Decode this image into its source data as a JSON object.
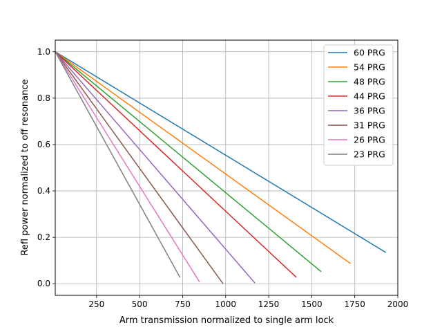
{
  "chart_data": {
    "type": "line",
    "title": "",
    "xlabel": "Arm transmission normalized to single arm lock",
    "ylabel": "Refl power normalized to off resonance",
    "xlim": [
      10,
      2000
    ],
    "ylim": [
      -0.05,
      1.05
    ],
    "xticks": [
      250,
      500,
      750,
      1000,
      1250,
      1500,
      1750,
      2000
    ],
    "yticks": [
      0.0,
      0.2,
      0.4,
      0.6,
      0.8,
      1.0
    ],
    "xtick_labels": [
      "250",
      "500",
      "750",
      "1000",
      "1250",
      "1500",
      "1750",
      "2000"
    ],
    "ytick_labels": [
      "0.0",
      "0.2",
      "0.4",
      "0.6",
      "0.8",
      "1.0"
    ],
    "grid": true,
    "legend_position": "top-right",
    "series": [
      {
        "name": "60 PRG",
        "color": "#1f77b4",
        "x": [
          10,
          1930
        ],
        "y": [
          1.0,
          0.135
        ]
      },
      {
        "name": "54 PRG",
        "color": "#ff7f0e",
        "x": [
          10,
          1725
        ],
        "y": [
          1.0,
          0.087
        ]
      },
      {
        "name": "48 PRG",
        "color": "#2ca02c",
        "x": [
          10,
          1555
        ],
        "y": [
          1.0,
          0.052
        ]
      },
      {
        "name": "44 PRG",
        "color": "#d62728",
        "x": [
          10,
          1410
        ],
        "y": [
          1.0,
          0.028
        ]
      },
      {
        "name": "36 PRG",
        "color": "#9467bd",
        "x": [
          10,
          1170
        ],
        "y": [
          1.0,
          0.003
        ]
      },
      {
        "name": "31 PRG",
        "color": "#8c564b",
        "x": [
          10,
          985
        ],
        "y": [
          1.0,
          0.0
        ]
      },
      {
        "name": "26 PRG",
        "color": "#e377c2",
        "x": [
          10,
          848
        ],
        "y": [
          1.0,
          0.008
        ]
      },
      {
        "name": "23 PRG",
        "color": "#7f7f7f",
        "x": [
          10,
          735
        ],
        "y": [
          1.0,
          0.027
        ]
      }
    ]
  }
}
